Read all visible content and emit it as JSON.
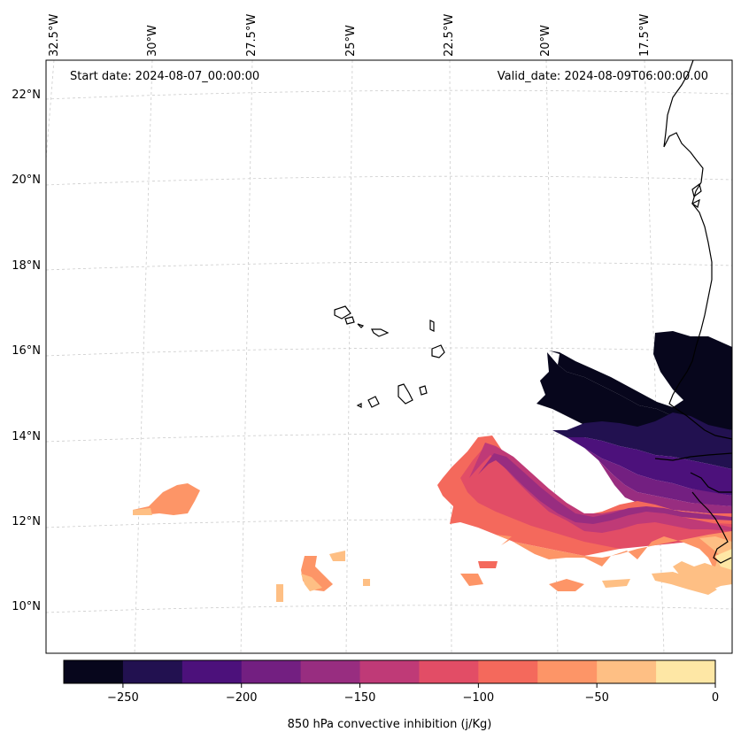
{
  "header": {
    "start_date": "Start date: 2024-08-07_00:00:00",
    "valid_date": "Valid_date: 2024-08-09T06:00:00.00"
  },
  "lon_labels": [
    "32.5°W",
    "30°W",
    "27.5°W",
    "25°W",
    "22.5°W",
    "20°W",
    "17.5°W"
  ],
  "lat_labels": [
    "22°N",
    "20°N",
    "18°N",
    "16°N",
    "14°N",
    "12°N",
    "10°N"
  ],
  "colorbar": {
    "label": "850 hPa convective inhibition (j/Kg)",
    "ticks": [
      "−250",
      "−200",
      "−150",
      "−100",
      "−50",
      "0"
    ],
    "levels": [
      -275,
      -250,
      -225,
      -200,
      -175,
      -150,
      -125,
      -100,
      -75,
      -50,
      -25,
      0
    ],
    "colors": [
      "#07061c",
      "#221150",
      "#4c117b",
      "#731f81",
      "#982d80",
      "#bf3a77",
      "#e24d66",
      "#f4695c",
      "#fd9567",
      "#febf84",
      "#fee7a5"
    ]
  }
}
